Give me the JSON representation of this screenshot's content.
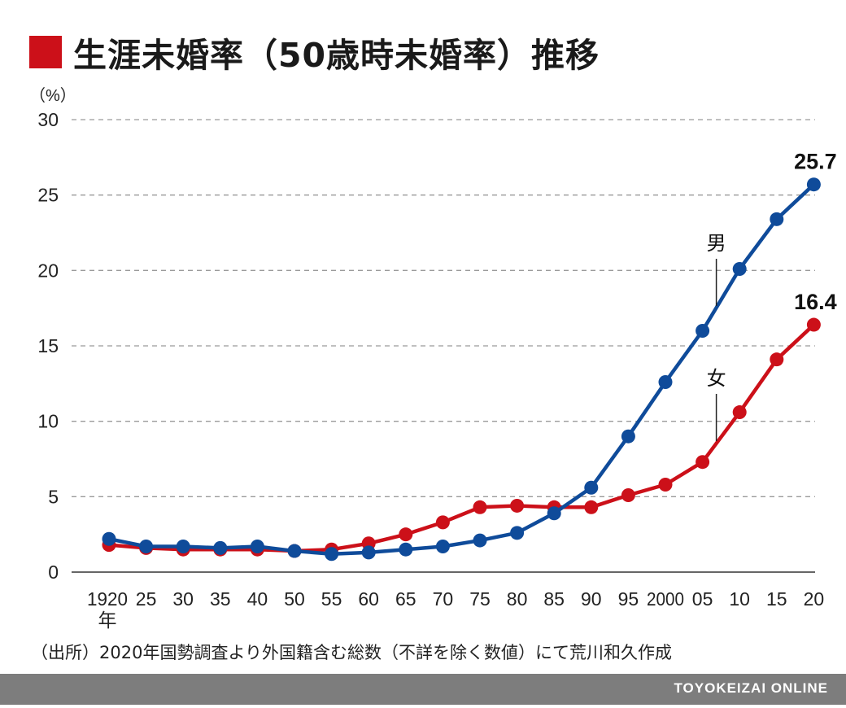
{
  "title": "生涯未婚率（50歳時未婚率）推移",
  "colors": {
    "accent": "#cc1019",
    "male": "#0f4b9a",
    "female": "#cc1019"
  },
  "source_note": "（出所）2020年国勢調査より外国籍含む総数（不詳を除く数値）にて荒川和久作成",
  "footer": "TOYOKEIZAI ONLINE",
  "chart_data": {
    "type": "line",
    "ylabel": "（%）",
    "ylim": [
      0,
      30
    ],
    "yticks": [
      0,
      5,
      10,
      15,
      20,
      25,
      30
    ],
    "grid": true,
    "categories": [
      "1920年",
      "25",
      "30",
      "35",
      "40",
      "50",
      "55",
      "60",
      "65",
      "70",
      "75",
      "80",
      "85",
      "90",
      "95",
      "2000",
      "05",
      "10",
      "15",
      "20"
    ],
    "series": [
      {
        "name": "男",
        "color": "#0f4b9a",
        "values": [
          2.2,
          1.7,
          1.7,
          1.6,
          1.7,
          1.4,
          1.2,
          1.3,
          1.5,
          1.7,
          2.1,
          2.6,
          3.9,
          5.6,
          9.0,
          12.6,
          16.0,
          20.1,
          23.4,
          25.7
        ]
      },
      {
        "name": "女",
        "color": "#cc1019",
        "values": [
          1.8,
          1.6,
          1.5,
          1.5,
          1.5,
          1.4,
          1.5,
          1.9,
          2.5,
          3.3,
          4.3,
          4.4,
          4.3,
          4.3,
          5.1,
          5.8,
          7.3,
          10.6,
          14.1,
          16.4
        ]
      }
    ],
    "annotations": [
      {
        "series": "男",
        "label": "25.7"
      },
      {
        "series": "女",
        "label": "16.4"
      }
    ]
  }
}
